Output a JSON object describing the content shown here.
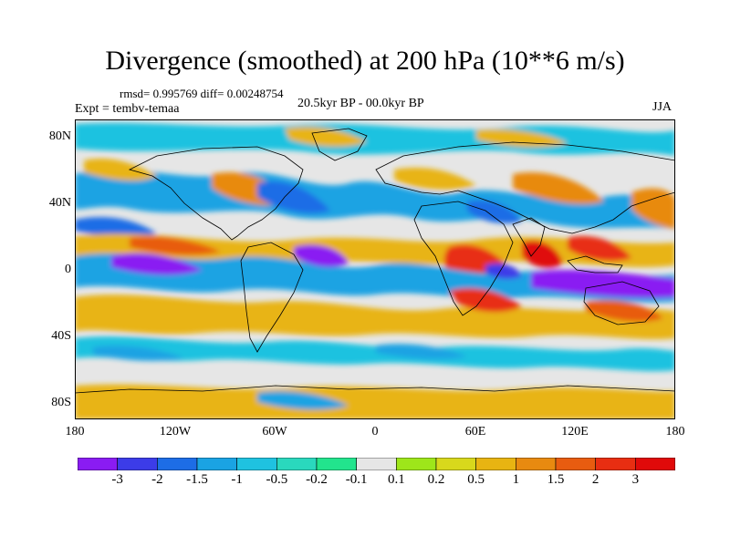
{
  "title": "Divergence (smoothed) at 200 hPa (10**6 m/s)",
  "stats": "rmsd= 0.995769 diff= 0.00248754",
  "experiment": "Expt = tembv-temaa",
  "period": "20.5kyr BP - 00.0kyr BP",
  "season": "JJA",
  "lat_labels": [
    "80N",
    "40N",
    "0",
    "40S",
    "80S"
  ],
  "lon_labels": [
    "180",
    "120W",
    "60W",
    "0",
    "60E",
    "120E",
    "180"
  ],
  "colorbar": {
    "labels": [
      "-3",
      "-2",
      "-1.5",
      "-1",
      "-0.5",
      "-0.2",
      "-0.1",
      "0.1",
      "0.2",
      "0.5",
      "1",
      "1.5",
      "2",
      "3"
    ],
    "colors": [
      "#8a1cf2",
      "#3c3ce8",
      "#1d6de6",
      "#1aa3e3",
      "#1fc2e0",
      "#2ad8bd",
      "#22e48d",
      "#e6e6e6",
      "#9ee61a",
      "#d8d81c",
      "#e8b412",
      "#e88a10",
      "#e85c10",
      "#e82e12",
      "#e00a0a"
    ]
  },
  "map_colors": {
    "background": "#e6e6e6",
    "neg_strong": "#8a1cf2",
    "neg": "#3c3ce8",
    "neg_mid": "#1d6de6",
    "neg_light": "#1aa3e3",
    "neg_pale": "#1fc2e0",
    "teal": "#2ad8bd",
    "green": "#22e48d",
    "pos_pale": "#9ee61a",
    "pos_light": "#d8d81c",
    "pos": "#e8b412",
    "pos_mid": "#e88a10",
    "pos_strong": "#e85c10",
    "red": "#e82e12",
    "red_dark": "#e00a0a",
    "coast": "#000000"
  }
}
